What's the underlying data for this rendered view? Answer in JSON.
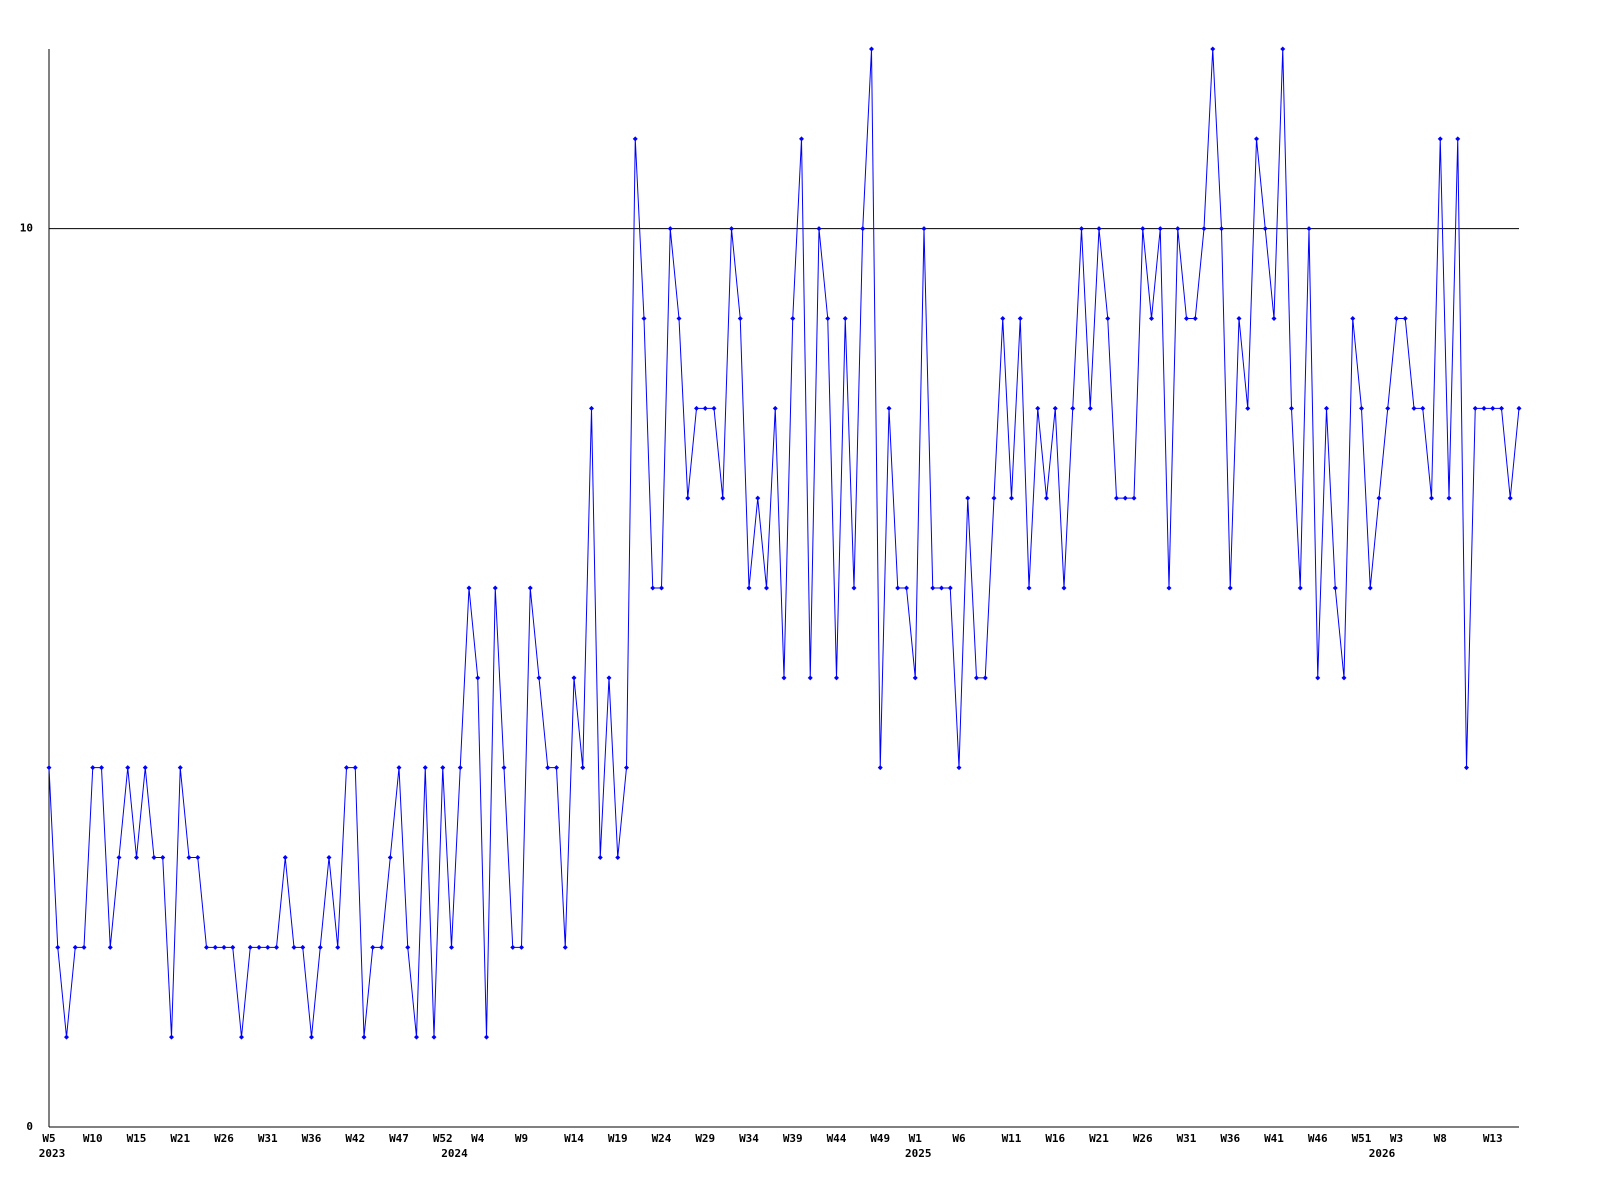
{
  "chart_data": {
    "type": "line",
    "categories": [
      "W5",
      null,
      null,
      null,
      null,
      "W10",
      null,
      null,
      null,
      null,
      "W15",
      null,
      null,
      null,
      null,
      "W21",
      null,
      null,
      null,
      null,
      "W26",
      null,
      null,
      null,
      null,
      "W31",
      null,
      null,
      null,
      null,
      "W36",
      null,
      null,
      null,
      null,
      "W42",
      null,
      null,
      null,
      null,
      "W47",
      null,
      null,
      null,
      null,
      "W52",
      null,
      null,
      null,
      "W4",
      null,
      null,
      null,
      null,
      "W9",
      null,
      null,
      null,
      null,
      null,
      "W14",
      null,
      null,
      null,
      null,
      "W19",
      null,
      null,
      null,
      null,
      "W24",
      null,
      null,
      null,
      null,
      "W29",
      null,
      null,
      null,
      null,
      "W34",
      null,
      null,
      null,
      null,
      "W39",
      null,
      null,
      null,
      null,
      "W44",
      null,
      null,
      null,
      null,
      "W49",
      null,
      null,
      null,
      "W1",
      null,
      null,
      null,
      null,
      "W6",
      null,
      null,
      null,
      null,
      null,
      "W11",
      null,
      null,
      null,
      null,
      "W16",
      null,
      null,
      null,
      null,
      "W21",
      null,
      null,
      null,
      null,
      "W26",
      null,
      null,
      null,
      null,
      "W31",
      null,
      null,
      null,
      null,
      "W36",
      null,
      null,
      null,
      null,
      "W41",
      null,
      null,
      null,
      null,
      "W46",
      null,
      null,
      null,
      null,
      "W51",
      null,
      null,
      null,
      "W3",
      null,
      null,
      null,
      null,
      "W8",
      null,
      null,
      null,
      null,
      null,
      "W13",
      null,
      null,
      null
    ],
    "year_categories": [
      "2023",
      null,
      null,
      null,
      null,
      null,
      null,
      null,
      null,
      null,
      null,
      null,
      null,
      null,
      null,
      null,
      null,
      null,
      null,
      null,
      null,
      null,
      null,
      null,
      null,
      null,
      null,
      null,
      null,
      null,
      null,
      null,
      null,
      null,
      null,
      null,
      null,
      null,
      null,
      null,
      null,
      null,
      null,
      null,
      null,
      null,
      "2024",
      null,
      null,
      null,
      null,
      null,
      null,
      null,
      null,
      null,
      null,
      null,
      null,
      null,
      null,
      null,
      null,
      null,
      null,
      null,
      null,
      null,
      null,
      null,
      null,
      null,
      null,
      null,
      null,
      null,
      null,
      null,
      null,
      null,
      null,
      null,
      null,
      null,
      null,
      null,
      null,
      null,
      null,
      null,
      null,
      null,
      null,
      null,
      null,
      null,
      null,
      null,
      null,
      "2025",
      null,
      null,
      null,
      null,
      null,
      null,
      null,
      null,
      null,
      null,
      null,
      null,
      null,
      null,
      null,
      null,
      null,
      null,
      null,
      null,
      null,
      null,
      null,
      null,
      null,
      null,
      null,
      null,
      null,
      null,
      null,
      null,
      null,
      null,
      null,
      null,
      null,
      null,
      null,
      null,
      null,
      null,
      null,
      null,
      null,
      null,
      null,
      null,
      null,
      null,
      null,
      null,
      "2026",
      null,
      null,
      null,
      null,
      null,
      null,
      null,
      null,
      null,
      null,
      null,
      null,
      null,
      null,
      null,
      null
    ],
    "series": [
      {
        "color": "#0000ff",
        "values": [
          4,
          2,
          1,
          2,
          2,
          4,
          4,
          2,
          3,
          4,
          3,
          4,
          3,
          3,
          1,
          4,
          3,
          3,
          2,
          2,
          2,
          2,
          1,
          2,
          2,
          2,
          2,
          3,
          2,
          2,
          1,
          2,
          3,
          2,
          4,
          4,
          1,
          2,
          2,
          3,
          4,
          2,
          1,
          4,
          1,
          4,
          2,
          4,
          6,
          5,
          1,
          6,
          4,
          2,
          2,
          6,
          5,
          4,
          4,
          2,
          5,
          4,
          8,
          3,
          5,
          3,
          4,
          11,
          9,
          6,
          6,
          10,
          9,
          7,
          8,
          8,
          8,
          7,
          10,
          9,
          6,
          7,
          6,
          8,
          5,
          9,
          11,
          5,
          10,
          9,
          5,
          9,
          6,
          10,
          12,
          4,
          8,
          6,
          6,
          5,
          10,
          6,
          6,
          6,
          4,
          7,
          5,
          5,
          7,
          9,
          7,
          9,
          6,
          8,
          7,
          8,
          6,
          8,
          10,
          8,
          10,
          9,
          7,
          7,
          7,
          10,
          9,
          10,
          6,
          10,
          9,
          9,
          10,
          12,
          10,
          6,
          9,
          8,
          11,
          10,
          9,
          12,
          8,
          6,
          10,
          5,
          8,
          6,
          5,
          9,
          8,
          6,
          7,
          8,
          9,
          9,
          8,
          8,
          7,
          11,
          7,
          11,
          4,
          8,
          8,
          8,
          8,
          7,
          8
        ]
      }
    ],
    "ylim": [
      0,
      12
    ],
    "yticks": [
      0,
      10
    ],
    "grid": true
  }
}
